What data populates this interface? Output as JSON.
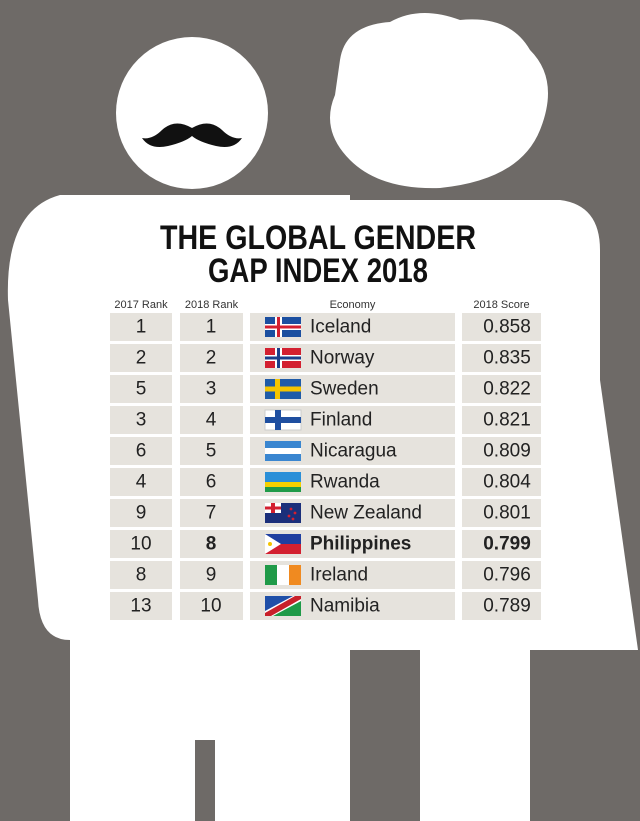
{
  "title": [
    "THE GLOBAL GENDER",
    "GAP INDEX 2018"
  ],
  "table": {
    "header": [
      "2017 Rank",
      "2018 Rank",
      "Economy",
      "2018 Score"
    ],
    "rows": [
      [
        1,
        1,
        "Iceland",
        0.858
      ],
      [
        2,
        2,
        "Norway",
        0.835
      ],
      [
        5,
        3,
        "Sweden",
        0.822
      ],
      [
        3,
        4,
        "Finland",
        0.821
      ],
      [
        6,
        5,
        "Nicaragua",
        0.809
      ],
      [
        4,
        6,
        "Rwanda",
        0.804
      ],
      [
        9,
        7,
        "New Zealand",
        0.801
      ],
      [
        10,
        8,
        "Philippines",
        0.799
      ],
      [
        8,
        9,
        "Ireland",
        0.796
      ],
      [
        13,
        10,
        "Namibia",
        0.789
      ]
    ]
  }
}
